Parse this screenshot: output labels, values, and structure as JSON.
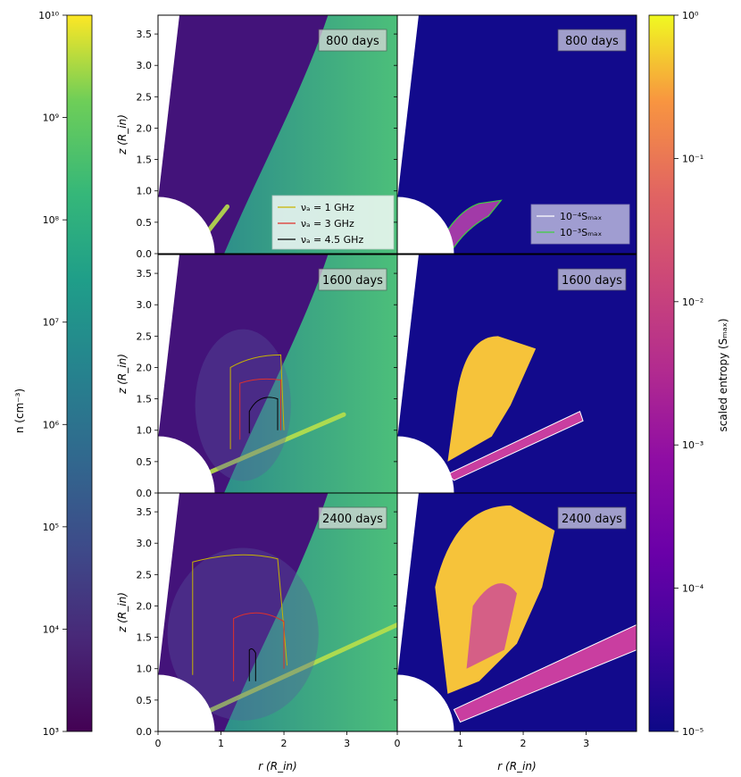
{
  "chart_data": {
    "type": "heatmap",
    "left_colorbar": {
      "label": "n (cm⁻³)",
      "ticks": [
        "10³",
        "10⁴",
        "10⁵",
        "10⁶",
        "10⁷",
        "10⁸",
        "10⁹",
        "10¹⁰"
      ],
      "log_range": [
        3,
        10
      ],
      "colormap": "viridis"
    },
    "right_colorbar": {
      "label": "scaled entropy (Sₘₐₓ)",
      "ticks": [
        "10⁻⁵",
        "10⁻⁴",
        "10⁻³",
        "10⁻²",
        "10⁻¹",
        "10⁰"
      ],
      "log_range": [
        -5,
        0
      ],
      "colormap": "plasma"
    },
    "axes": {
      "xlabel": "r (R_in)",
      "ylabel": "z (R_in)",
      "x_ticks": [
        "0",
        "1",
        "2",
        "3"
      ],
      "y_ticks": [
        "0.0",
        "0.5",
        "1.0",
        "1.5",
        "2.0",
        "2.5",
        "3.0",
        "3.5"
      ],
      "xlim": [
        0,
        3.8
      ],
      "ylim": [
        0,
        3.8
      ]
    },
    "panels": [
      {
        "time_label": "800 days"
      },
      {
        "time_label": "1600 days"
      },
      {
        "time_label": "2400 days"
      }
    ],
    "legend_density": [
      {
        "label": "νₐ = 1 GHz",
        "color": "#c8b400"
      },
      {
        "label": "νₐ = 3 GHz",
        "color": "#e0302a"
      },
      {
        "label": "νₐ = 4.5 GHz",
        "color": "#000000"
      }
    ],
    "legend_entropy": [
      {
        "label": "10⁻⁴Sₘₐₓ",
        "color": "#ffffff"
      },
      {
        "label": "10⁻³Sₘₐₓ",
        "color": "#3fcf3f"
      }
    ],
    "colors": {
      "density_background": "#43137a",
      "density_wind": "#3bb88a",
      "entropy_background": "#120a8c",
      "entropy_hot": "#f6c33a",
      "entropy_mid": "#c93ea0"
    }
  }
}
